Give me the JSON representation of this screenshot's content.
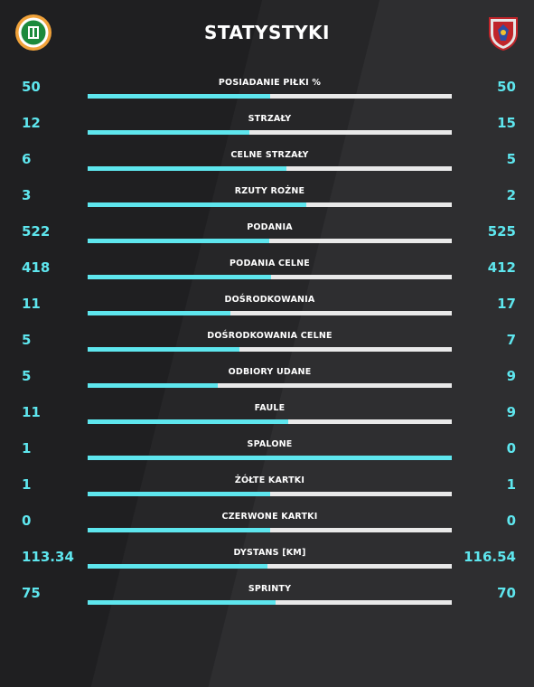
{
  "header": {
    "title": "STATYSTYKI"
  },
  "colors": {
    "accent": "#5ee6ee",
    "track": "#e9e9e9"
  },
  "stats": [
    {
      "label": "POSIADANIE PIŁKI %",
      "left": "50",
      "right": "50",
      "ratio": 0.5
    },
    {
      "label": "STRZAŁY",
      "left": "12",
      "right": "15",
      "ratio": 0.444
    },
    {
      "label": "CELNE STRZAŁY",
      "left": "6",
      "right": "5",
      "ratio": 0.545
    },
    {
      "label": "RZUTY ROŻNE",
      "left": "3",
      "right": "2",
      "ratio": 0.6
    },
    {
      "label": "PODANIA",
      "left": "522",
      "right": "525",
      "ratio": 0.499
    },
    {
      "label": "PODANIA CELNE",
      "left": "418",
      "right": "412",
      "ratio": 0.504
    },
    {
      "label": "DOŚRODKOWANIA",
      "left": "11",
      "right": "17",
      "ratio": 0.393
    },
    {
      "label": "DOŚRODKOWANIA CELNE",
      "left": "5",
      "right": "7",
      "ratio": 0.417
    },
    {
      "label": "ODBIORY UDANE",
      "left": "5",
      "right": "9",
      "ratio": 0.357
    },
    {
      "label": "FAULE",
      "left": "11",
      "right": "9",
      "ratio": 0.55
    },
    {
      "label": "SPALONE",
      "left": "1",
      "right": "0",
      "ratio": 1.0
    },
    {
      "label": "ŻÓŁTE KARTKI",
      "left": "1",
      "right": "1",
      "ratio": 0.5
    },
    {
      "label": "CZERWONE KARTKI",
      "left": "0",
      "right": "0",
      "ratio": 0.5
    },
    {
      "label": "DYSTANS [KM]",
      "left": "113.34",
      "right": "116.54",
      "ratio": 0.493
    },
    {
      "label": "SPRINTY",
      "left": "75",
      "right": "70",
      "ratio": 0.517
    }
  ]
}
